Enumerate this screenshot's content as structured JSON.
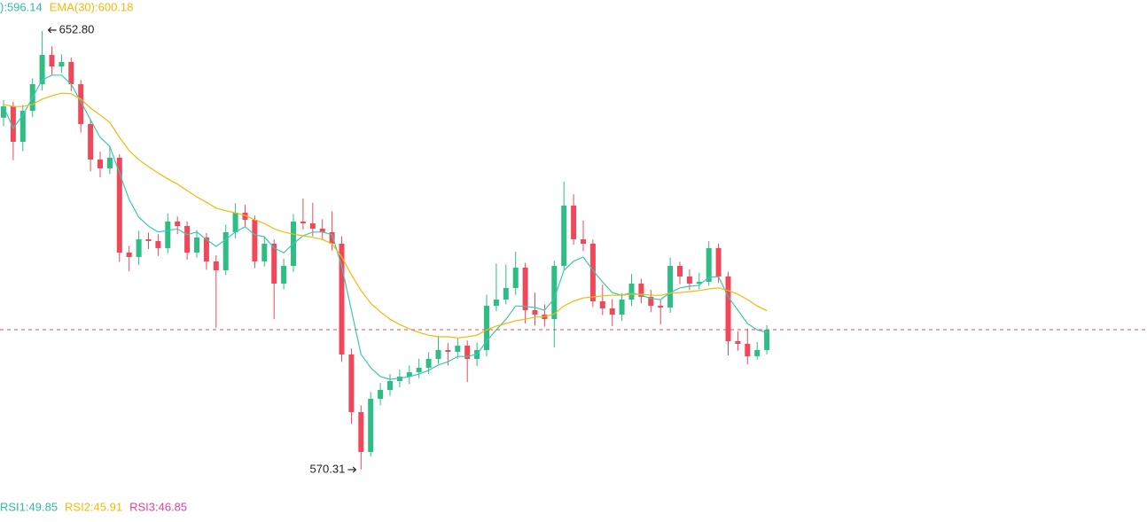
{
  "chart_data": {
    "type": "candlestick",
    "ylim": [
      561.3,
      658.63
    ],
    "up_color": "#2ebd85",
    "down_color": "#f0485a",
    "top_labels": [
      {
        "text": "):596.14",
        "color": "#2ebd9f"
      },
      {
        "text": "EMA(30):600.18",
        "color": "#f0b90b"
      }
    ],
    "bottom_labels": [
      {
        "text": "RSI1:49.85",
        "color": "#2ebd9f"
      },
      {
        "text": "RSI2:45.91",
        "color": "#f0b90b"
      },
      {
        "text": "RSI3:46.85",
        "color": "#e040a0"
      }
    ],
    "max_label": "652.80",
    "min_label": "570.31",
    "candles": [
      [
        636.5,
        639.8,
        634.9,
        638.63
      ],
      [
        638.63,
        639.5,
        628.5,
        631.97
      ],
      [
        631.97,
        638.9,
        630.2,
        637.8
      ],
      [
        637.8,
        643.9,
        636.6,
        642.8
      ],
      [
        642.8,
        652.8,
        641.6,
        648.3
      ],
      [
        648.3,
        649.9,
        644.6,
        646.13
      ],
      [
        646.13,
        648.4,
        644.9,
        646.97
      ],
      [
        646.97,
        647.8,
        641.5,
        642.8
      ],
      [
        642.8,
        643.6,
        633.7,
        635.3
      ],
      [
        635.3,
        636.2,
        626.4,
        628.63
      ],
      [
        628.63,
        630.1,
        625.3,
        626.97
      ],
      [
        626.97,
        631.2,
        625.9,
        628.97
      ],
      [
        628.97,
        629.6,
        609.4,
        611.13
      ],
      [
        611.13,
        612.4,
        607.6,
        610.3
      ],
      [
        610.3,
        615.2,
        608.8,
        613.63
      ],
      [
        613.63,
        614.9,
        611.8,
        613.3
      ],
      [
        613.3,
        614.6,
        610.5,
        611.97
      ],
      [
        611.97,
        618.5,
        611.0,
        616.97
      ],
      [
        616.97,
        617.9,
        614.6,
        616.13
      ],
      [
        616.13,
        617.0,
        609.8,
        611.13
      ],
      [
        611.13,
        615.4,
        610.2,
        613.97
      ],
      [
        613.97,
        614.8,
        607.9,
        609.47
      ],
      [
        609.47,
        610.6,
        597.0,
        607.8
      ],
      [
        607.8,
        616.4,
        606.9,
        614.97
      ],
      [
        614.97,
        620.4,
        613.8,
        618.63
      ],
      [
        618.63,
        620.1,
        616.0,
        617.3
      ],
      [
        617.3,
        618.1,
        608.2,
        609.47
      ],
      [
        609.47,
        614.2,
        608.5,
        612.8
      ],
      [
        612.8,
        613.6,
        598.6,
        605.3
      ],
      [
        605.3,
        610.0,
        604.2,
        608.63
      ],
      [
        608.63,
        618.4,
        607.5,
        616.97
      ],
      [
        616.97,
        621.3,
        615.5,
        616.63
      ],
      [
        616.63,
        620.5,
        614.2,
        615.63
      ],
      [
        615.63,
        617.4,
        613.6,
        614.97
      ],
      [
        614.97,
        618.9,
        611.5,
        612.8
      ],
      [
        612.8,
        614.2,
        590.6,
        591.97
      ],
      [
        591.97,
        593.1,
        578.9,
        581.13
      ],
      [
        581.13,
        582.4,
        570.31,
        573.63
      ],
      [
        573.63,
        584.9,
        572.8,
        583.63
      ],
      [
        583.63,
        586.6,
        582.4,
        585.3
      ],
      [
        585.3,
        588.3,
        584.2,
        586.97
      ],
      [
        586.97,
        589.1,
        585.8,
        587.8
      ],
      [
        587.8,
        589.9,
        586.4,
        588.63
      ],
      [
        588.63,
        591.2,
        587.5,
        589.47
      ],
      [
        589.47,
        592.4,
        588.3,
        591.13
      ],
      [
        591.13,
        595.4,
        590.2,
        592.8
      ],
      [
        592.8,
        594.1,
        589.9,
        592.47
      ],
      [
        592.47,
        595.0,
        591.2,
        593.63
      ],
      [
        593.63,
        594.6,
        586.8,
        591.13
      ],
      [
        591.13,
        594.2,
        589.8,
        592.8
      ],
      [
        592.8,
        603.2,
        591.6,
        601.13
      ],
      [
        601.13,
        609.1,
        600.1,
        602.3
      ],
      [
        602.3,
        608.9,
        601.4,
        604.47
      ],
      [
        604.47,
        611.3,
        603.2,
        608.3
      ],
      [
        608.3,
        609.2,
        597.8,
        600.3
      ],
      [
        600.3,
        603.6,
        597.4,
        599.47
      ],
      [
        599.47,
        601.4,
        597.2,
        598.63
      ],
      [
        598.63,
        609.6,
        593.3,
        608.63
      ],
      [
        608.63,
        624.47,
        607.9,
        619.97
      ],
      [
        619.97,
        622.1,
        612.6,
        613.63
      ],
      [
        613.63,
        617.2,
        611.4,
        612.8
      ],
      [
        612.8,
        613.6,
        600.9,
        601.97
      ],
      [
        601.97,
        605.1,
        599.4,
        600.63
      ],
      [
        600.63,
        602.4,
        597.3,
        599.47
      ],
      [
        599.47,
        603.5,
        598.3,
        602.3
      ],
      [
        602.3,
        607.1,
        601.1,
        605.3
      ],
      [
        605.3,
        606.2,
        601.6,
        602.8
      ],
      [
        602.8,
        604.1,
        599.9,
        601.13
      ],
      [
        601.13,
        602.2,
        597.6,
        600.8
      ],
      [
        600.8,
        610.2,
        599.8,
        608.63
      ],
      [
        608.63,
        609.4,
        605.2,
        606.63
      ],
      [
        606.63,
        608.0,
        604.1,
        605.3
      ],
      [
        605.3,
        607.3,
        604.2,
        605.63
      ],
      [
        605.63,
        613.3,
        604.9,
        611.97
      ],
      [
        611.97,
        612.8,
        605.4,
        606.63
      ],
      [
        606.63,
        607.5,
        591.8,
        594.47
      ],
      [
        594.47,
        596.3,
        592.7,
        593.97
      ],
      [
        593.97,
        596.8,
        590.1,
        591.63
      ],
      [
        591.63,
        594.3,
        591.0,
        592.8
      ],
      [
        592.8,
        597.5,
        592.0,
        596.63
      ]
    ],
    "series": [
      {
        "color": "#3cc8b0",
        "values": [
          638.6,
          634.5,
          637.0,
          640.3,
          643.6,
          644.5,
          644.5,
          642.8,
          639.5,
          636.1,
          632.8,
          631.1,
          626.1,
          621.1,
          617.8,
          616.1,
          615.0,
          615.3,
          615.6,
          614.5,
          615.0,
          613.6,
          612.3,
          613.6,
          615.0,
          616.0,
          614.5,
          614.1,
          612.0,
          611.1,
          612.8,
          614.3,
          615.0,
          615.0,
          614.5,
          608.6,
          600.3,
          592.0,
          589.5,
          587.8,
          587.3,
          587.5,
          587.8,
          588.3,
          589.0,
          590.0,
          590.6,
          591.6,
          591.6,
          592.0,
          594.5,
          596.6,
          598.6,
          601.1,
          601.0,
          600.8,
          600.3,
          602.5,
          607.8,
          609.5,
          610.3,
          607.8,
          605.6,
          603.6,
          603.1,
          603.6,
          603.1,
          602.5,
          602.3,
          603.6,
          604.5,
          604.8,
          605.0,
          606.5,
          606.6,
          602.8,
          600.3,
          597.8,
          596.6,
          596.14
        ]
      },
      {
        "color": "#f0b90b",
        "values": [
          639.0,
          638.6,
          638.6,
          639.0,
          640.0,
          640.6,
          641.1,
          641.0,
          640.0,
          638.3,
          637.0,
          635.6,
          632.8,
          630.3,
          628.6,
          627.3,
          626.1,
          625.0,
          624.0,
          622.8,
          621.6,
          620.6,
          619.5,
          619.0,
          618.6,
          618.1,
          617.3,
          616.6,
          615.6,
          615.0,
          614.6,
          614.3,
          614.0,
          613.6,
          612.8,
          610.3,
          607.0,
          604.0,
          601.6,
          600.0,
          598.6,
          597.6,
          596.8,
          596.1,
          595.6,
          595.3,
          595.3,
          595.1,
          595.3,
          595.6,
          596.6,
          597.3,
          597.8,
          598.3,
          598.6,
          599.0,
          599.1,
          599.6,
          601.1,
          602.0,
          602.6,
          602.8,
          603.0,
          603.1,
          603.1,
          603.3,
          603.3,
          603.1,
          603.1,
          603.5,
          603.6,
          603.8,
          604.0,
          604.3,
          604.5,
          604.0,
          603.3,
          602.3,
          601.1,
          600.18
        ]
      }
    ]
  }
}
